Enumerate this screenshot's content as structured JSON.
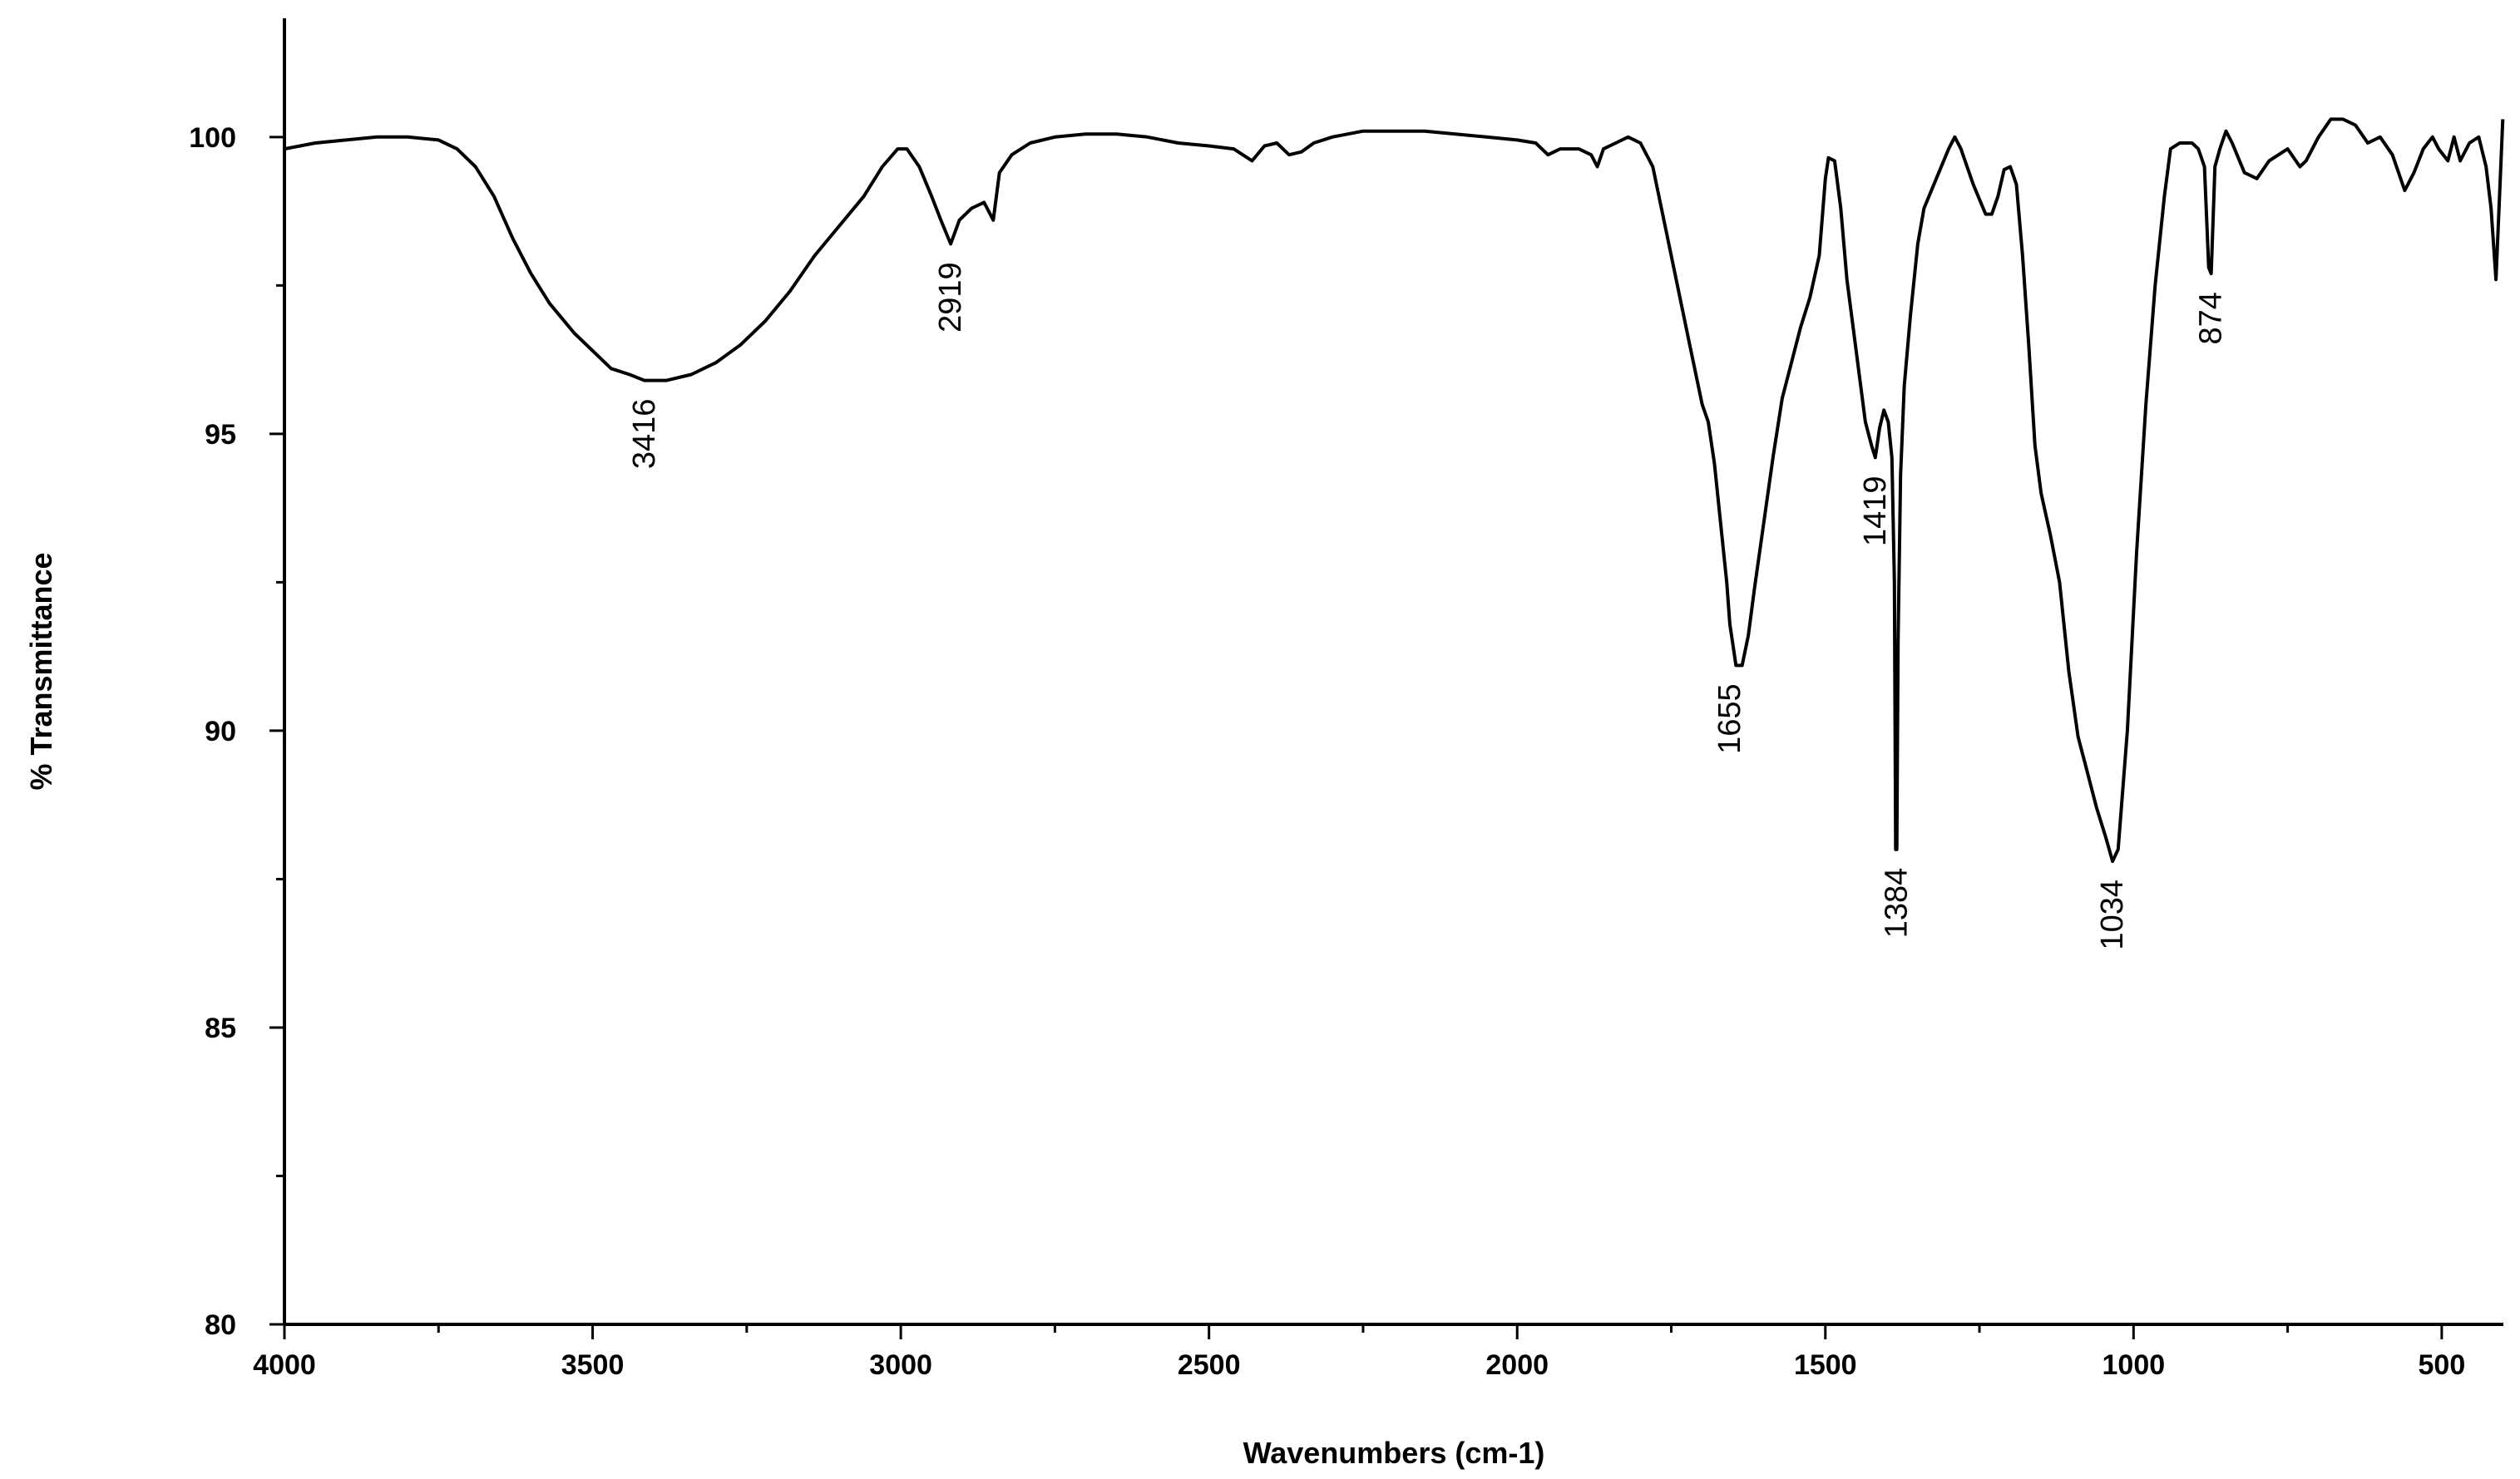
{
  "chart_data": {
    "type": "line",
    "xlabel": "Wavenumbers (cm-1)",
    "ylabel": "% Transmittance",
    "xlim": [
      4000,
      400
    ],
    "ylim": [
      80,
      102
    ],
    "x_ticks": [
      4000,
      3500,
      3000,
      2500,
      2000,
      1500,
      1000,
      500
    ],
    "y_ticks": [
      80,
      85,
      90,
      95,
      100
    ],
    "grid": false,
    "legend": "none",
    "line_color": "#000000",
    "series": [
      {
        "points": [
          [
            4000,
            99.8
          ],
          [
            3950,
            99.9
          ],
          [
            3900,
            99.95
          ],
          [
            3850,
            100.0
          ],
          [
            3800,
            100.0
          ],
          [
            3750,
            99.95
          ],
          [
            3720,
            99.8
          ],
          [
            3690,
            99.5
          ],
          [
            3660,
            99.0
          ],
          [
            3630,
            98.3
          ],
          [
            3600,
            97.7
          ],
          [
            3570,
            97.2
          ],
          [
            3530,
            96.7
          ],
          [
            3500,
            96.4
          ],
          [
            3470,
            96.1
          ],
          [
            3440,
            96.0
          ],
          [
            3416,
            95.9
          ],
          [
            3380,
            95.9
          ],
          [
            3340,
            96.0
          ],
          [
            3300,
            96.2
          ],
          [
            3260,
            96.5
          ],
          [
            3220,
            96.9
          ],
          [
            3180,
            97.4
          ],
          [
            3140,
            98.0
          ],
          [
            3100,
            98.5
          ],
          [
            3060,
            99.0
          ],
          [
            3030,
            99.5
          ],
          [
            3005,
            99.8
          ],
          [
            2990,
            99.8
          ],
          [
            2970,
            99.5
          ],
          [
            2950,
            99.0
          ],
          [
            2935,
            98.6
          ],
          [
            2919,
            98.2
          ],
          [
            2905,
            98.6
          ],
          [
            2885,
            98.8
          ],
          [
            2865,
            98.9
          ],
          [
            2850,
            98.6
          ],
          [
            2840,
            99.4
          ],
          [
            2820,
            99.7
          ],
          [
            2790,
            99.9
          ],
          [
            2750,
            100.0
          ],
          [
            2700,
            100.05
          ],
          [
            2650,
            100.05
          ],
          [
            2600,
            100.0
          ],
          [
            2550,
            99.9
          ],
          [
            2500,
            99.85
          ],
          [
            2460,
            99.8
          ],
          [
            2430,
            99.6
          ],
          [
            2410,
            99.85
          ],
          [
            2390,
            99.9
          ],
          [
            2370,
            99.7
          ],
          [
            2350,
            99.75
          ],
          [
            2330,
            99.9
          ],
          [
            2300,
            100.0
          ],
          [
            2250,
            100.1
          ],
          [
            2200,
            100.1
          ],
          [
            2150,
            100.1
          ],
          [
            2100,
            100.05
          ],
          [
            2050,
            100.0
          ],
          [
            2000,
            99.95
          ],
          [
            1970,
            99.9
          ],
          [
            1950,
            99.7
          ],
          [
            1930,
            99.8
          ],
          [
            1900,
            99.8
          ],
          [
            1880,
            99.7
          ],
          [
            1870,
            99.5
          ],
          [
            1860,
            99.8
          ],
          [
            1840,
            99.9
          ],
          [
            1820,
            100.0
          ],
          [
            1800,
            99.9
          ],
          [
            1780,
            99.5
          ],
          [
            1760,
            98.5
          ],
          [
            1740,
            97.5
          ],
          [
            1720,
            96.5
          ],
          [
            1700,
            95.5
          ],
          [
            1690,
            95.2
          ],
          [
            1680,
            94.5
          ],
          [
            1670,
            93.5
          ],
          [
            1660,
            92.5
          ],
          [
            1655,
            91.8
          ],
          [
            1645,
            91.1
          ],
          [
            1635,
            91.1
          ],
          [
            1625,
            91.6
          ],
          [
            1615,
            92.4
          ],
          [
            1600,
            93.5
          ],
          [
            1585,
            94.6
          ],
          [
            1570,
            95.6
          ],
          [
            1555,
            96.2
          ],
          [
            1540,
            96.8
          ],
          [
            1525,
            97.3
          ],
          [
            1510,
            98.0
          ],
          [
            1500,
            99.3
          ],
          [
            1495,
            99.65
          ],
          [
            1485,
            99.6
          ],
          [
            1475,
            98.8
          ],
          [
            1465,
            97.6
          ],
          [
            1455,
            96.8
          ],
          [
            1445,
            96.0
          ],
          [
            1435,
            95.2
          ],
          [
            1425,
            94.8
          ],
          [
            1419,
            94.6
          ],
          [
            1412,
            95.1
          ],
          [
            1405,
            95.4
          ],
          [
            1398,
            95.2
          ],
          [
            1392,
            94.6
          ],
          [
            1388,
            92.5
          ],
          [
            1386,
            88.0
          ],
          [
            1384,
            88.0
          ],
          [
            1382,
            91.5
          ],
          [
            1378,
            94.3
          ],
          [
            1372,
            95.8
          ],
          [
            1362,
            97.0
          ],
          [
            1350,
            98.2
          ],
          [
            1340,
            98.8
          ],
          [
            1320,
            99.3
          ],
          [
            1300,
            99.8
          ],
          [
            1290,
            100.0
          ],
          [
            1280,
            99.8
          ],
          [
            1260,
            99.2
          ],
          [
            1240,
            98.7
          ],
          [
            1230,
            98.7
          ],
          [
            1220,
            99.0
          ],
          [
            1210,
            99.45
          ],
          [
            1200,
            99.5
          ],
          [
            1190,
            99.2
          ],
          [
            1180,
            98.0
          ],
          [
            1170,
            96.5
          ],
          [
            1160,
            94.8
          ],
          [
            1150,
            94.0
          ],
          [
            1135,
            93.3
          ],
          [
            1120,
            92.5
          ],
          [
            1105,
            91.0
          ],
          [
            1090,
            89.9
          ],
          [
            1075,
            89.3
          ],
          [
            1060,
            88.7
          ],
          [
            1045,
            88.2
          ],
          [
            1034,
            87.8
          ],
          [
            1025,
            88.0
          ],
          [
            1010,
            90.0
          ],
          [
            995,
            93.0
          ],
          [
            980,
            95.5
          ],
          [
            965,
            97.5
          ],
          [
            950,
            99.0
          ],
          [
            940,
            99.8
          ],
          [
            925,
            99.9
          ],
          [
            905,
            99.9
          ],
          [
            895,
            99.8
          ],
          [
            885,
            99.5
          ],
          [
            878,
            97.8
          ],
          [
            874,
            97.7
          ],
          [
            868,
            99.5
          ],
          [
            860,
            99.8
          ],
          [
            850,
            100.1
          ],
          [
            840,
            99.9
          ],
          [
            820,
            99.4
          ],
          [
            800,
            99.3
          ],
          [
            780,
            99.6
          ],
          [
            750,
            99.8
          ],
          [
            730,
            99.5
          ],
          [
            720,
            99.6
          ],
          [
            700,
            100.0
          ],
          [
            680,
            100.3
          ],
          [
            660,
            100.3
          ],
          [
            640,
            100.2
          ],
          [
            620,
            99.9
          ],
          [
            600,
            100.0
          ],
          [
            580,
            99.7
          ],
          [
            560,
            99.1
          ],
          [
            545,
            99.4
          ],
          [
            530,
            99.8
          ],
          [
            515,
            100.0
          ],
          [
            505,
            99.8
          ],
          [
            490,
            99.6
          ],
          [
            480,
            100.0
          ],
          [
            470,
            99.6
          ],
          [
            455,
            99.9
          ],
          [
            440,
            100.0
          ],
          [
            428,
            99.5
          ],
          [
            420,
            98.8
          ],
          [
            412,
            97.6
          ],
          [
            405,
            99.3
          ],
          [
            401,
            100.3
          ]
        ]
      }
    ],
    "annotations": [
      {
        "text": "3416",
        "x": 3416,
        "y": 95.9
      },
      {
        "text": "2919",
        "x": 2919,
        "y": 98.2
      },
      {
        "text": "1655",
        "x": 1655,
        "y": 91.1
      },
      {
        "text": "1419",
        "x": 1419,
        "y": 94.6
      },
      {
        "text": "1384",
        "x": 1384,
        "y": 88.0
      },
      {
        "text": "1034",
        "x": 1034,
        "y": 87.8
      },
      {
        "text": "874",
        "x": 874,
        "y": 97.7
      }
    ]
  }
}
